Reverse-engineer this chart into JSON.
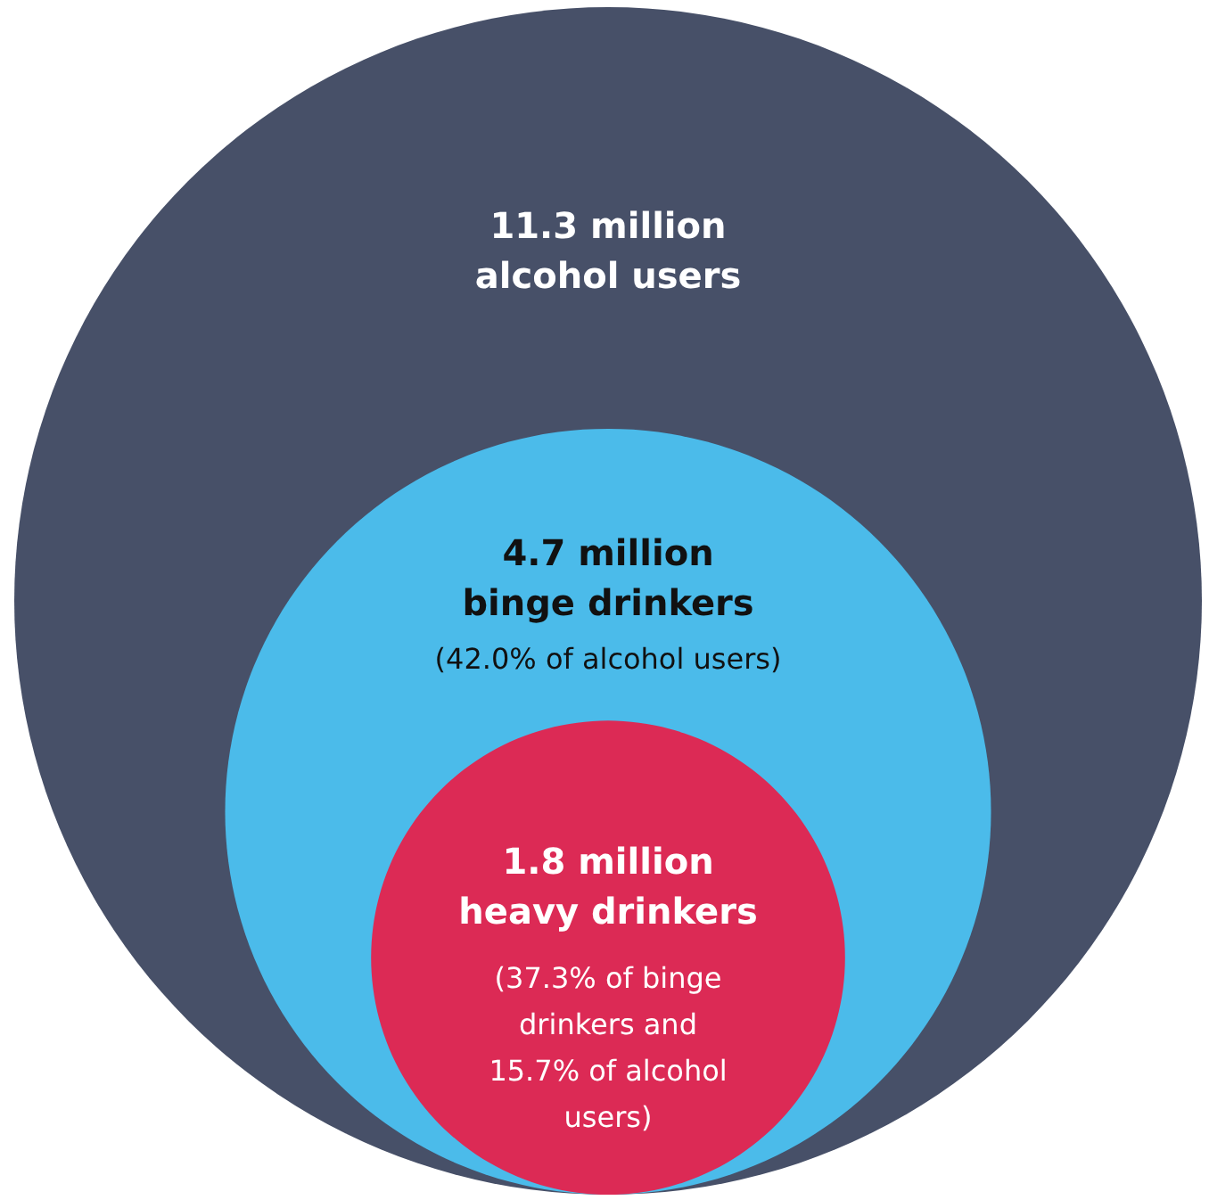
{
  "chart_data": {
    "type": "other",
    "categories": [
      "alcohol users",
      "binge drinkers",
      "heavy drinkers"
    ],
    "values": [
      11.3,
      4.7,
      1.8
    ],
    "colors": [
      "#475068",
      "#4bbbea",
      "#dc2a55"
    ],
    "value_labels": [
      "11.3 million",
      "4.7 million",
      "1.8 million"
    ],
    "annotations": [
      "(42.0% of alcohol users)",
      "(37.3% of binge\ndrinkers and\n15.7% of alcohol\nusers)"
    ]
  }
}
